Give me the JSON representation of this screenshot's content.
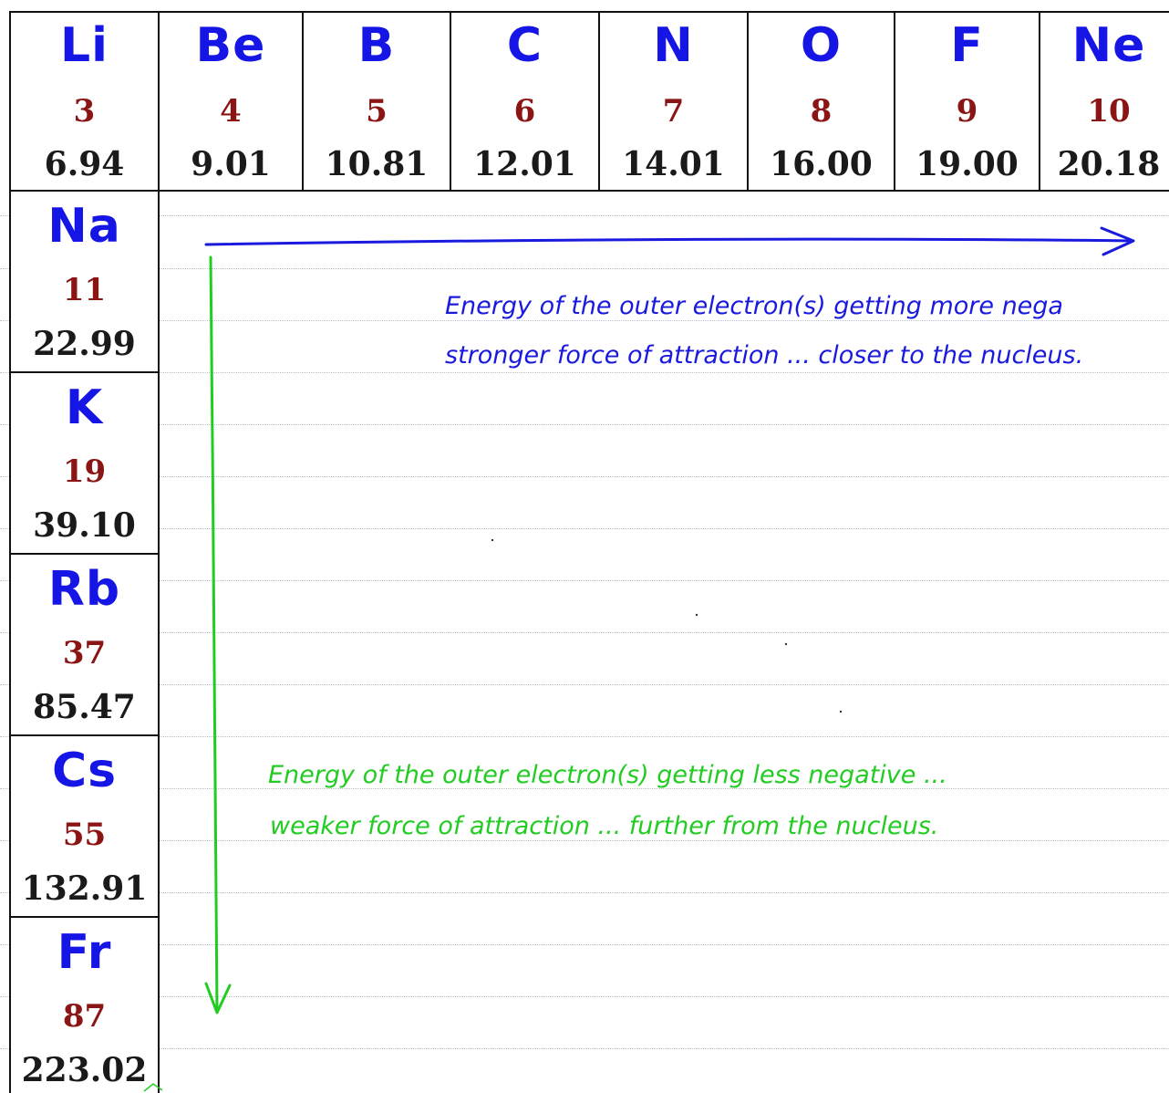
{
  "period2": [
    {
      "symbol": "Li",
      "number": "3",
      "mass": "6.94"
    },
    {
      "symbol": "Be",
      "number": "4",
      "mass": "9.01"
    },
    {
      "symbol": "B",
      "number": "5",
      "mass": "10.81"
    },
    {
      "symbol": "C",
      "number": "6",
      "mass": "12.01"
    },
    {
      "symbol": "N",
      "number": "7",
      "mass": "14.01"
    },
    {
      "symbol": "O",
      "number": "8",
      "mass": "16.00"
    },
    {
      "symbol": "F",
      "number": "9",
      "mass": "19.00"
    },
    {
      "symbol": "Ne",
      "number": "10",
      "mass": "20.18"
    }
  ],
  "group1": [
    {
      "symbol": "Na",
      "number": "11",
      "mass": "22.99"
    },
    {
      "symbol": "K",
      "number": "19",
      "mass": "39.10"
    },
    {
      "symbol": "Rb",
      "number": "37",
      "mass": "85.47"
    },
    {
      "symbol": "Cs",
      "number": "55",
      "mass": "132.91"
    },
    {
      "symbol": "Fr",
      "number": "87",
      "mass": "223.02"
    }
  ],
  "annotations": {
    "across_line1": "Energy of the outer electron(s) getting more nega",
    "across_line2": "stronger force of attraction ... closer to the nucleus.",
    "down_line1": "Energy of the outer electron(s) getting less negative ...",
    "down_line2": "weaker force of attraction ... further from the nucleus."
  },
  "colors": {
    "symbol": "#1515e6",
    "atomic_number": "#8b1414",
    "mass": "#1a1a1a",
    "across_arrow": "#1a1adf",
    "down_arrow": "#22cc22"
  }
}
